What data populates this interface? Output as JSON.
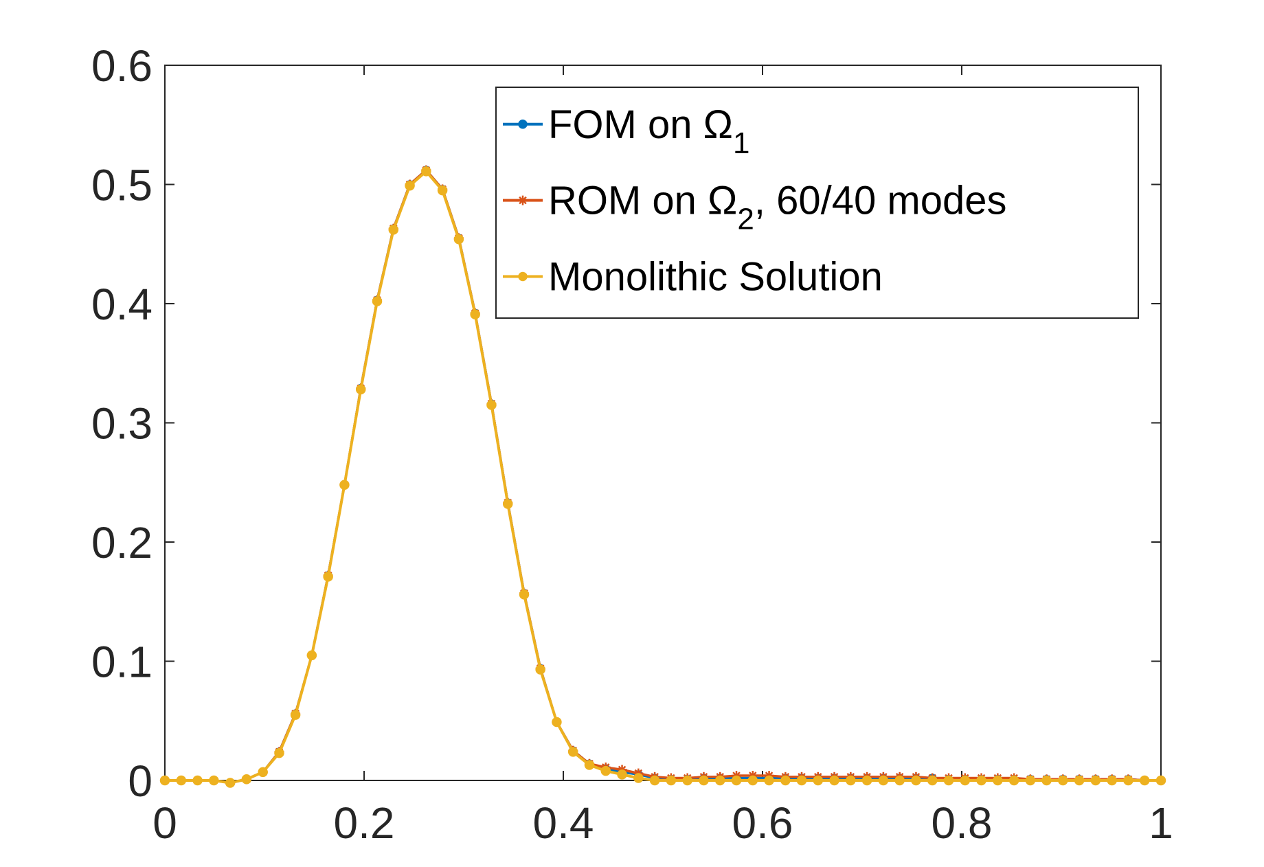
{
  "chart_data": {
    "type": "line",
    "title": "",
    "xlabel": "",
    "ylabel": "",
    "xlim": [
      0,
      1
    ],
    "ylim": [
      0,
      0.6
    ],
    "x_ticks": [
      "0",
      "0.2",
      "0.4",
      "0.6",
      "0.8",
      "1"
    ],
    "y_ticks": [
      "0",
      "0.1",
      "0.2",
      "0.3",
      "0.4",
      "0.5",
      "0.6"
    ],
    "grid": false,
    "box": true,
    "legend_position": "top-right",
    "x": [
      0,
      0.0164,
      0.0328,
      0.0492,
      0.0656,
      0.082,
      0.0984,
      0.1148,
      0.1311,
      0.1475,
      0.1639,
      0.1803,
      0.1967,
      0.2131,
      0.2295,
      0.2459,
      0.2623,
      0.2787,
      0.2951,
      0.3115,
      0.3279,
      0.3443,
      0.3607,
      0.377,
      0.3934,
      0.4098,
      0.4262,
      0.4426,
      0.459,
      0.4754,
      0.4918,
      0.5082,
      0.5246,
      0.541,
      0.5574,
      0.5738,
      0.5902,
      0.6066,
      0.623,
      0.6393,
      0.6557,
      0.6721,
      0.6885,
      0.7049,
      0.7213,
      0.7377,
      0.7541,
      0.7705,
      0.7869,
      0.8033,
      0.8197,
      0.8361,
      0.8525,
      0.8689,
      0.8852,
      0.9016,
      0.918,
      0.9344,
      0.9508,
      0.9672,
      0.9836,
      1.0
    ],
    "series": [
      {
        "name": "FOM on Ω",
        "name_subscript": "1",
        "color": "#0072BD",
        "marker": "circle",
        "values": [
          0,
          0,
          0,
          0,
          -0.002,
          0.001,
          0.007,
          0.024,
          0.056,
          0.105,
          0.172,
          0.248,
          0.329,
          0.403,
          0.463,
          0.5,
          0.512,
          0.496,
          0.455,
          0.392,
          0.316,
          0.233,
          0.157,
          0.094,
          0.049,
          0.025,
          0.014,
          0.01,
          0.007,
          0.005,
          0.002,
          0.001,
          0.001,
          0.002,
          0.002,
          0.002,
          0.002,
          0.002,
          0.002,
          0.002,
          0.002,
          0.002,
          0.002,
          0.002,
          0.002,
          0.002,
          0.002,
          0.002,
          0.001,
          0.001,
          0.001,
          0.001,
          0.001,
          0.001,
          0.001,
          0.001,
          0.001,
          0.001,
          0.001,
          0.001,
          0,
          0
        ]
      },
      {
        "name": "ROM on Ω",
        "name_subscript": "2",
        "name_suffix": ", 60/40 modes",
        "color": "#D95319",
        "marker": "asterisk",
        "values": [
          0,
          0,
          0,
          0,
          -0.002,
          0.001,
          0.007,
          0.024,
          0.056,
          0.105,
          0.172,
          0.248,
          0.329,
          0.403,
          0.463,
          0.5,
          0.512,
          0.496,
          0.455,
          0.392,
          0.316,
          0.233,
          0.157,
          0.094,
          0.049,
          0.025,
          0.014,
          0.011,
          0.009,
          0.006,
          0.003,
          0.002,
          0.002,
          0.003,
          0.003,
          0.004,
          0.004,
          0.004,
          0.003,
          0.003,
          0.003,
          0.003,
          0.003,
          0.003,
          0.003,
          0.003,
          0.003,
          0.002,
          0.002,
          0.002,
          0.002,
          0.002,
          0.002,
          0.001,
          0.001,
          0.001,
          0.001,
          0.001,
          0.001,
          0.001,
          0,
          0
        ]
      },
      {
        "name": "Monolithic Solution",
        "color": "#EDB120",
        "marker": "circle",
        "values": [
          0,
          0,
          0,
          0,
          -0.002,
          0.001,
          0.007,
          0.023,
          0.055,
          0.105,
          0.171,
          0.248,
          0.328,
          0.402,
          0.462,
          0.499,
          0.511,
          0.495,
          0.454,
          0.391,
          0.315,
          0.232,
          0.156,
          0.093,
          0.049,
          0.024,
          0.013,
          0.008,
          0.005,
          0.002,
          0,
          0,
          0,
          0,
          0,
          0,
          0,
          0,
          0,
          0,
          0,
          0,
          0,
          0,
          0,
          0,
          0,
          0,
          0,
          0,
          0,
          0,
          0,
          0,
          0,
          0,
          0,
          0,
          0,
          0,
          0,
          0
        ]
      }
    ]
  }
}
